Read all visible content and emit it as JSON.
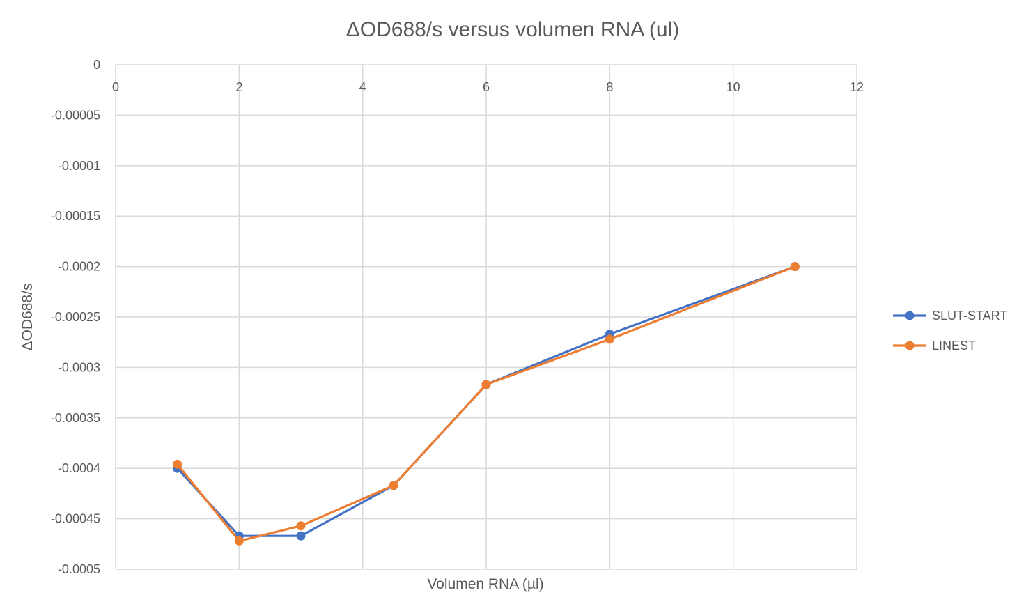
{
  "chart_data": {
    "type": "line",
    "title": "ΔOD688/s versus volumen RNA (ul)",
    "xlabel": "Volumen RNA (µl)",
    "ylabel": "ΔOD688/s",
    "xlim": [
      0,
      12
    ],
    "ylim": [
      -0.0005,
      0
    ],
    "x_ticks": [
      0,
      2,
      4,
      6,
      8,
      10,
      12
    ],
    "x_tick_labels": [
      "0",
      "2",
      "4",
      "6",
      "8",
      "10",
      "12"
    ],
    "y_ticks": [
      0,
      -5e-05,
      -0.0001,
      -0.00015,
      -0.0002,
      -0.00025,
      -0.0003,
      -0.00035,
      -0.0004,
      -0.00045,
      -0.0005
    ],
    "y_tick_labels": [
      "0",
      "-0.00005",
      "-0.0001",
      "-0.00015",
      "-0.0002",
      "-0.00025",
      "-0.0003",
      "-0.00035",
      "-0.0004",
      "-0.00045",
      "-0.0005"
    ],
    "x_axis_position": "top",
    "grid": true,
    "legend_position": "right",
    "series": [
      {
        "name": "SLUT-START",
        "color": "#4472C4",
        "x": [
          1,
          2,
          3,
          4.5,
          6,
          8,
          11
        ],
        "y": [
          -0.0004,
          -0.000467,
          -0.000467,
          -0.000417,
          -0.000317,
          -0.000267,
          -0.0002
        ]
      },
      {
        "name": "LINEST",
        "color": "#ED7D31",
        "x": [
          1,
          2,
          3,
          4.5,
          6,
          8,
          11
        ],
        "y": [
          -0.000396,
          -0.000472,
          -0.000457,
          -0.000417,
          -0.000317,
          -0.000272,
          -0.0002
        ]
      }
    ]
  }
}
